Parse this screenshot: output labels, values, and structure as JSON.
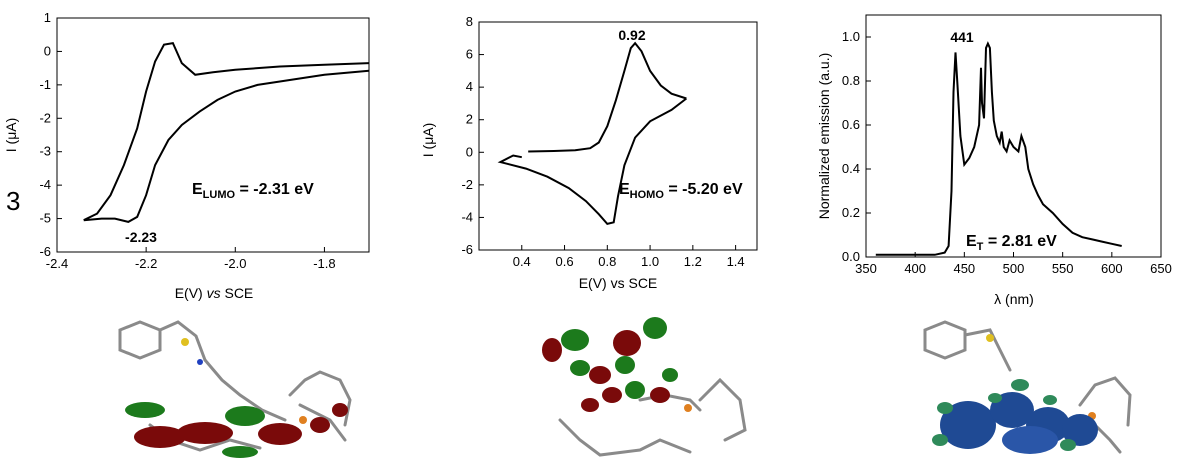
{
  "panel_label": "3",
  "chart_data": [
    {
      "type": "line",
      "xlabel": "E(V) vs SCE",
      "xlabel_parts": [
        "E(V) ",
        "vs",
        " SCE"
      ],
      "ylabel": "I (μA)",
      "xlim": [
        -2.4,
        -1.7
      ],
      "ylim": [
        -6,
        1
      ],
      "xticks": [
        -2.4,
        -2.2,
        -2.0,
        -1.8
      ],
      "yticks": [
        -6,
        -5,
        -4,
        -3,
        -2,
        -1,
        0,
        1
      ],
      "xtick_labels": [
        "-2.4",
        "-2.2",
        "-2.0",
        "-1.8"
      ],
      "ytick_labels": [
        "-6",
        "-5",
        "-4",
        "-3",
        "-2",
        "-1",
        "0",
        "1"
      ],
      "peak_label": "-2.23",
      "energy_label": {
        "main": "E",
        "sub": "LUMO",
        "rest": " = -2.31 eV"
      },
      "series": [
        {
          "x": [
            -1.7,
            -1.8,
            -1.9,
            -2.0,
            -2.05,
            -2.09,
            -2.12,
            -2.14,
            -2.16,
            -2.18,
            -2.2,
            -2.22,
            -2.25,
            -2.28,
            -2.31,
            -2.34
          ],
          "y": [
            -0.35,
            -0.4,
            -0.45,
            -0.55,
            -0.62,
            -0.7,
            -0.35,
            0.25,
            0.2,
            -0.3,
            -1.2,
            -2.3,
            -3.4,
            -4.3,
            -4.85,
            -5.05
          ]
        },
        {
          "x": [
            -2.34,
            -2.3,
            -2.27,
            -2.24,
            -2.22,
            -2.2,
            -2.18,
            -2.15,
            -2.12,
            -2.08,
            -2.04,
            -2.0,
            -1.95,
            -1.9,
            -1.8,
            -1.7
          ],
          "y": [
            -5.05,
            -5.0,
            -5.0,
            -5.1,
            -4.95,
            -4.3,
            -3.4,
            -2.65,
            -2.2,
            -1.8,
            -1.45,
            -1.2,
            -1.0,
            -0.9,
            -0.7,
            -0.58
          ]
        }
      ]
    },
    {
      "type": "line",
      "xlabel": "E(V) vs SCE",
      "ylabel": "I (μA)",
      "xlim": [
        0.2,
        1.5
      ],
      "ylim": [
        -6,
        8
      ],
      "xticks": [
        0.4,
        0.6,
        0.8,
        1.0,
        1.2,
        1.4
      ],
      "yticks": [
        -6,
        -4,
        -2,
        0,
        2,
        4,
        6,
        8
      ],
      "xtick_labels": [
        "0.4",
        "0.6",
        "0.8",
        "1.0",
        "1.2",
        "1.4"
      ],
      "ytick_labels": [
        "-6",
        "-4",
        "-2",
        "0",
        "2",
        "4",
        "6",
        "8"
      ],
      "peak_label": "0.92",
      "energy_label": {
        "main": "E",
        "sub": "HOMO",
        "rest": " = -5.20 eV"
      },
      "series": [
        {
          "x": [
            0.43,
            0.55,
            0.65,
            0.72,
            0.76,
            0.8,
            0.84,
            0.88,
            0.91,
            0.93,
            0.96,
            1.0,
            1.05,
            1.1,
            1.17
          ],
          "y": [
            0.05,
            0.08,
            0.12,
            0.25,
            0.6,
            1.6,
            3.2,
            5.0,
            6.4,
            6.7,
            6.2,
            5.0,
            4.1,
            3.6,
            3.3
          ]
        },
        {
          "x": [
            1.17,
            1.1,
            1.0,
            0.93,
            0.88,
            0.85,
            0.83,
            0.8,
            0.76,
            0.7,
            0.62,
            0.52,
            0.42,
            0.33,
            0.3,
            0.36,
            0.4
          ],
          "y": [
            3.3,
            2.6,
            1.9,
            0.9,
            -0.8,
            -2.7,
            -4.3,
            -4.4,
            -3.8,
            -3.0,
            -2.2,
            -1.5,
            -1.0,
            -0.7,
            -0.6,
            -0.2,
            -0.3
          ]
        }
      ]
    },
    {
      "type": "line",
      "xlabel": "λ (nm)",
      "ylabel": "Normalized emission (a.u.)",
      "xlim": [
        350,
        650
      ],
      "ylim": [
        0.0,
        1.1
      ],
      "xticks": [
        350,
        400,
        450,
        500,
        550,
        600,
        650
      ],
      "yticks": [
        0.0,
        0.2,
        0.4,
        0.6,
        0.8,
        1.0
      ],
      "xtick_labels": [
        "350",
        "400",
        "450",
        "500",
        "550",
        "600",
        "650"
      ],
      "ytick_labels": [
        "0.0",
        "0.2",
        "0.4",
        "0.6",
        "0.8",
        "1.0"
      ],
      "peak_label": "441",
      "energy_label": {
        "main": "E",
        "sub": "T",
        "rest": " = 2.81 eV"
      },
      "series": [
        {
          "x": [
            360,
            400,
            420,
            430,
            434,
            437,
            439,
            441,
            443,
            446,
            450,
            455,
            460,
            465,
            467,
            468,
            470,
            472,
            474,
            476,
            478,
            480,
            483,
            486,
            488,
            490,
            493,
            496,
            500,
            505,
            508,
            512,
            515,
            520,
            525,
            530,
            540,
            550,
            560,
            570,
            580,
            590,
            600,
            610
          ],
          "y": [
            0.01,
            0.01,
            0.01,
            0.02,
            0.05,
            0.3,
            0.75,
            0.93,
            0.78,
            0.55,
            0.42,
            0.45,
            0.5,
            0.6,
            0.86,
            0.7,
            0.63,
            0.95,
            0.97,
            0.95,
            0.75,
            0.62,
            0.55,
            0.52,
            0.57,
            0.5,
            0.48,
            0.53,
            0.5,
            0.48,
            0.55,
            0.5,
            0.4,
            0.33,
            0.28,
            0.24,
            0.2,
            0.15,
            0.11,
            0.09,
            0.08,
            0.07,
            0.06,
            0.05
          ]
        }
      ]
    }
  ],
  "orbital_images": [
    {
      "name": "lumo-orbital-render",
      "lobe_colors": [
        "#7a0a0a",
        "#1c7a1c"
      ]
    },
    {
      "name": "homo-orbital-render",
      "lobe_colors": [
        "#7a0a0a",
        "#1c7a1c"
      ]
    },
    {
      "name": "spin-density-render",
      "lobe_colors": [
        "#1f4a94",
        "#2f8a5a"
      ]
    }
  ]
}
